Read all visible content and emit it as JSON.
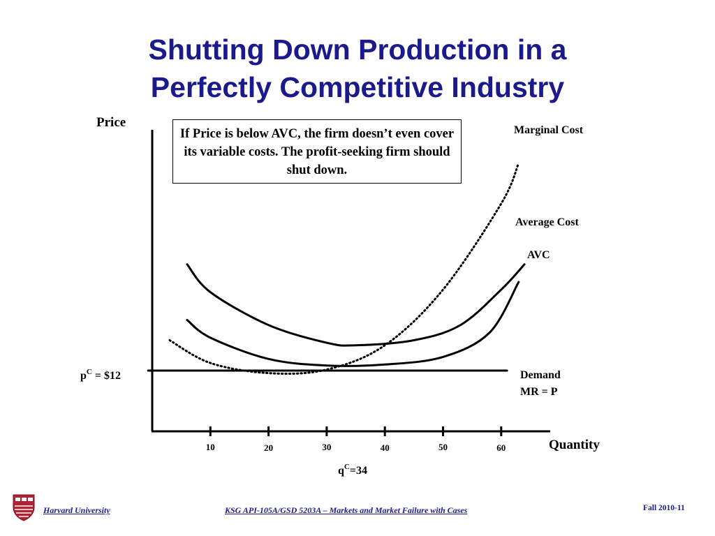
{
  "slide": {
    "title_line1": "Shutting Down Production in a",
    "title_line2": "Perfectly Competitive Industry",
    "callout": "If Price is below AVC, the firm doesn’t even cover its variable costs.  The profit-seeking firm should shut down."
  },
  "footer": {
    "left": "Harvard University",
    "center": "KSG API-105A/GSD 5203A – Markets and Market Failure with Cases",
    "right": "Fall 2010-11"
  },
  "colors": {
    "title": "#1a1a8c",
    "axis": "#000000",
    "shield": "#b22234"
  },
  "chart_data": {
    "type": "line",
    "ylabel": "Price",
    "xlabel": "Quantity",
    "x_ticks": [
      "10",
      "20",
      "30",
      "40",
      "50",
      "60"
    ],
    "price_marker": {
      "text_main": "p",
      "text_sup": "C",
      "text_rest": " = $12",
      "value": 12
    },
    "quantity_marker": {
      "text_main": "q",
      "text_sup": "C",
      "text_rest": "=34",
      "value": 34
    },
    "series": [
      {
        "name": "Marginal Cost",
        "style": "dotted",
        "points": [
          [
            3,
            18
          ],
          [
            10,
            13.5
          ],
          [
            20,
            11.5
          ],
          [
            30,
            12.2
          ],
          [
            40,
            17
          ],
          [
            50,
            28
          ],
          [
            60,
            45
          ],
          [
            63,
            53
          ]
        ]
      },
      {
        "name": "Average Cost",
        "style": "solid",
        "points": [
          [
            6,
            33
          ],
          [
            10,
            27.5
          ],
          [
            20,
            21
          ],
          [
            30,
            17.5
          ],
          [
            35,
            17
          ],
          [
            45,
            18
          ],
          [
            53,
            21
          ],
          [
            60,
            28
          ],
          [
            64,
            33
          ]
        ]
      },
      {
        "name": "AVC",
        "style": "solid",
        "points": [
          [
            6,
            22
          ],
          [
            10,
            18.5
          ],
          [
            20,
            14.3
          ],
          [
            30,
            13
          ],
          [
            40,
            13.2
          ],
          [
            50,
            14.7
          ],
          [
            58,
            19.5
          ],
          [
            63,
            29.5
          ]
        ]
      },
      {
        "name_line1": "Demand",
        "name_line2": "MR = P",
        "style": "solid",
        "points": [
          [
            0,
            12
          ],
          [
            61,
            12
          ]
        ]
      }
    ]
  }
}
